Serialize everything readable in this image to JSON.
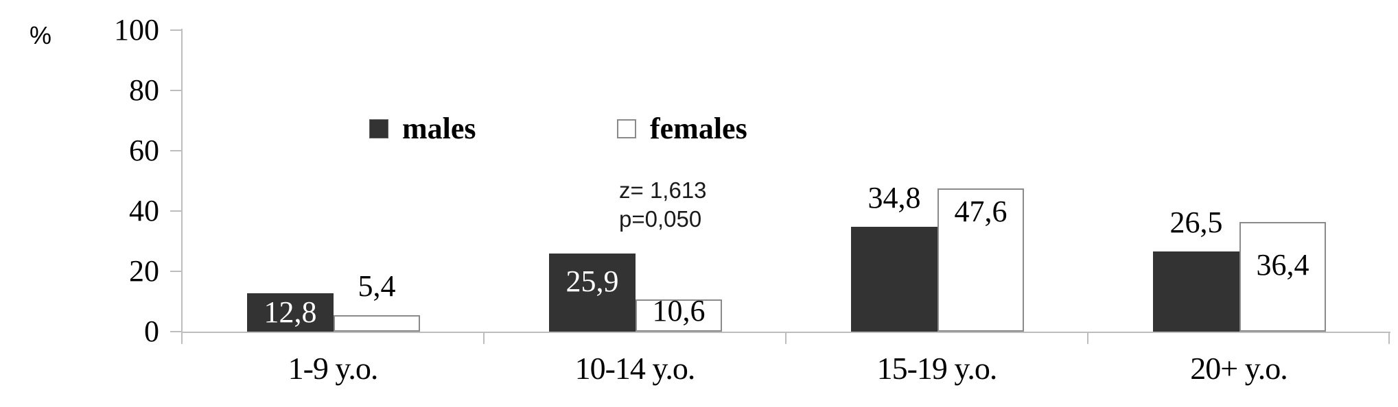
{
  "chart_data": {
    "type": "bar",
    "title": "",
    "ylabel": "%",
    "xlabel": "",
    "categories": [
      "1-9 y.o.",
      "10-14 y.o.",
      "15-19 y.o.",
      "20+ y.o."
    ],
    "series": [
      {
        "name": "males",
        "values": [
          12.8,
          25.9,
          34.8,
          26.5
        ],
        "value_labels": [
          "12,8",
          "25,9",
          "34,8",
          "26,5"
        ],
        "fill_color": "#333333",
        "border_color": "#333333",
        "inside_label_color": "#ffffff",
        "label_placement": [
          "inside-center",
          "inside-top",
          "above",
          "above"
        ],
        "label_dy": [
          0,
          26,
          0,
          0
        ]
      },
      {
        "name": "females",
        "values": [
          5.4,
          10.6,
          47.6,
          36.4
        ],
        "value_labels": [
          "5,4",
          "10,6",
          "47,6",
          "36,4"
        ],
        "fill_color": "#ffffff",
        "border_color": "#8a8a8a",
        "inside_label_color": "#000000",
        "label_placement": [
          "above",
          "inside-top",
          "inside-top",
          "inside-top"
        ],
        "label_dy": [
          0,
          2,
          19,
          48
        ]
      }
    ],
    "y_axis": {
      "min": 0,
      "max": 100,
      "tick_step": 20,
      "tick_labels": [
        "100",
        "80",
        "60",
        "40",
        "20",
        "0"
      ]
    },
    "legend": {
      "position": "top-center",
      "entries": [
        "males",
        "females"
      ]
    },
    "annotation": {
      "lines": [
        "z= 1,613",
        "p=0,050"
      ]
    },
    "grid": false,
    "decimal_separator": ",",
    "axis_color": "#bdbdbd",
    "text_color": "#000000"
  }
}
